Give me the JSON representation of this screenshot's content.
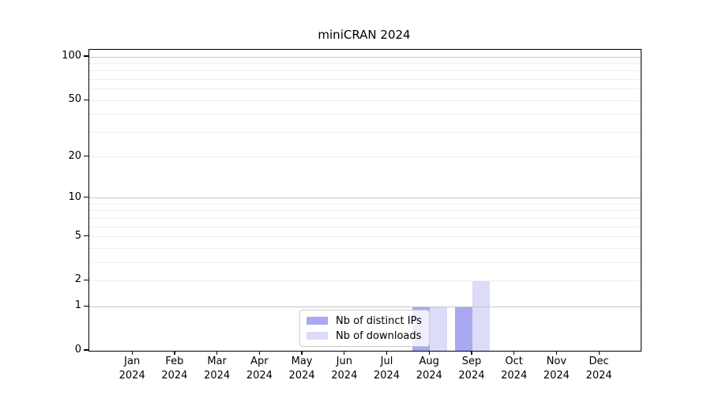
{
  "chart_data": {
    "type": "bar",
    "title": "miniCRAN 2024",
    "categories": [
      "Jan",
      "Feb",
      "Mar",
      "Apr",
      "May",
      "Jun",
      "Jul",
      "Aug",
      "Sep",
      "Oct",
      "Nov",
      "Dec"
    ],
    "year_label": "2024",
    "series": [
      {
        "name": "Nb of distinct IPs",
        "color": "#a9a9f1",
        "values": [
          0,
          0,
          0,
          0,
          0,
          0,
          0,
          1,
          1,
          0,
          0,
          0
        ]
      },
      {
        "name": "Nb of downloads",
        "color": "#dcdcf8",
        "values": [
          0,
          0,
          0,
          0,
          0,
          0,
          0,
          1,
          2,
          0,
          0,
          0
        ]
      }
    ],
    "xlabel": "",
    "ylabel": "",
    "y_scale": "log1p",
    "y_ticks": [
      0,
      1,
      2,
      5,
      10,
      20,
      50,
      100
    ],
    "ylim": [
      0,
      112
    ],
    "gridlines": {
      "major": [
        1,
        10,
        100
      ],
      "minor": [
        2,
        3,
        4,
        5,
        6,
        7,
        8,
        9,
        20,
        30,
        40,
        50,
        60,
        70,
        80,
        90
      ]
    },
    "legend": {
      "position": "lower center"
    },
    "colors": {
      "grid_major": "#c6c6c6",
      "grid_minor": "#ededed",
      "spine": "#000000",
      "text": "#000000"
    }
  }
}
